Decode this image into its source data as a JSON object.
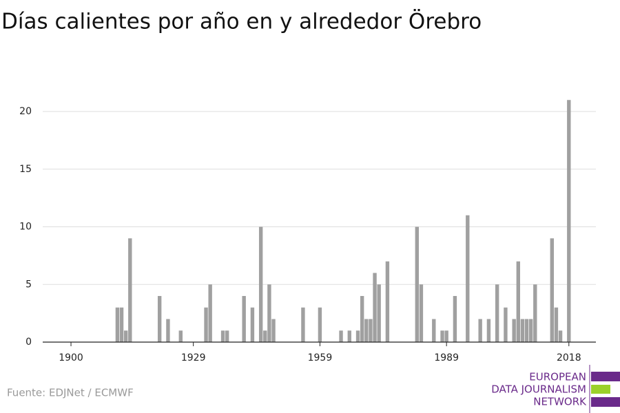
{
  "chart_data": {
    "type": "bar",
    "title": "Días calientes por año en y alrededor Örebro",
    "source": "Fuente: EDJNet / ECMWF",
    "logo": [
      "EUROPEAN",
      "DATA JOURNALISM",
      "NETWORK"
    ],
    "color": "#a0a0a0",
    "x": [
      1911,
      1912,
      1913,
      1914,
      1921,
      1923,
      1926,
      1932,
      1933,
      1936,
      1937,
      1941,
      1943,
      1945,
      1946,
      1947,
      1948,
      1955,
      1959,
      1964,
      1966,
      1968,
      1969,
      1970,
      1971,
      1972,
      1973,
      1975,
      1982,
      1983,
      1986,
      1988,
      1989,
      1991,
      1994,
      1997,
      1999,
      2001,
      2003,
      2005,
      2006,
      2007,
      2008,
      2009,
      2010,
      2014,
      2015,
      2016,
      2018
    ],
    "values": [
      3,
      3,
      1,
      9,
      4,
      2,
      1,
      3,
      5,
      1,
      1,
      4,
      3,
      10,
      1,
      5,
      2,
      3,
      3,
      1,
      1,
      1,
      4,
      2,
      2,
      6,
      5,
      7,
      10,
      5,
      2,
      1,
      1,
      4,
      11,
      2,
      2,
      5,
      3,
      2,
      7,
      2,
      2,
      2,
      5,
      9,
      3,
      1,
      21
    ],
    "xlim": [
      1893.3,
      2024.4
    ],
    "xticks": [
      1900,
      1929,
      1959,
      1989,
      2018
    ],
    "ylim": [
      0,
      22
    ],
    "yticks": [
      0,
      5,
      10,
      15,
      20
    ],
    "grid": true
  }
}
